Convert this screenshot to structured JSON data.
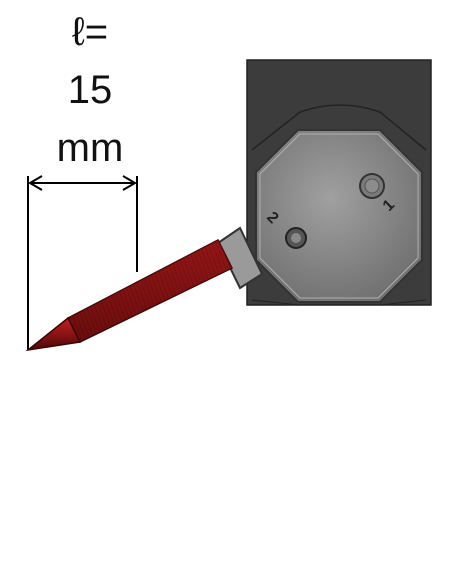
{
  "dimension_label": {
    "line1": "ℓ=",
    "line2": "15",
    "line3": "mm"
  },
  "plate_marks": {
    "hole1": "1",
    "hole2": "2"
  },
  "colors": {
    "holder_body": "#3a3a3a",
    "plate_face": "#8a8a8a",
    "cone_red": "#8b1414",
    "arrow": "#000000"
  }
}
